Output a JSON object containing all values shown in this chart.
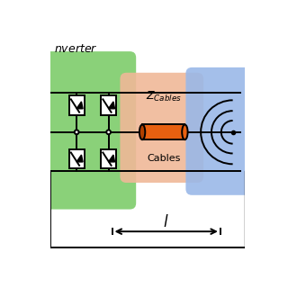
{
  "bg_color": "#ffffff",
  "green_bg": "#7dcc6a",
  "salmon_bg": "#f0b898",
  "blue_bg": "#9ab8e8",
  "orange_cable": "#e86010",
  "orange_cable_dark": "#b04000",
  "line_color": "#000000",
  "line_width": 1.4,
  "inverter_label": "nverter",
  "zcables_label": "$Z_{Cables}$",
  "cables_label": "Cables",
  "l_label": "$l$"
}
